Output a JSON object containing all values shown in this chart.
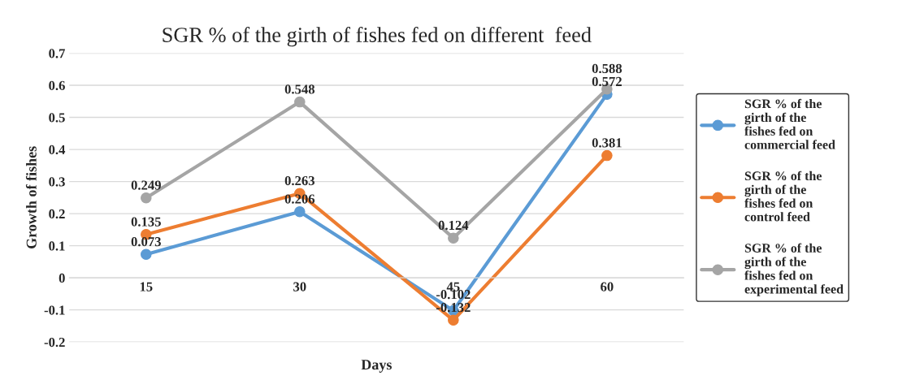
{
  "chart_data": {
    "type": "line",
    "title": "SGR % of the girth of fishes fed on different  feed",
    "xlabel": "Days",
    "ylabel": "Growth of fishes",
    "categories": [
      "15",
      "30",
      "45",
      "60"
    ],
    "series": [
      {
        "name": "SGR % of the girth of the fishes fed on commercial feed",
        "color": "#5b9bd5",
        "values": [
          0.073,
          0.206,
          -0.102,
          0.572
        ]
      },
      {
        "name": "SGR % of the girth of the fishes fed on control feed",
        "color": "#ed7d31",
        "values": [
          0.135,
          0.263,
          -0.132,
          0.381
        ]
      },
      {
        "name": "SGR % of the girth of the fishes fed on experimental feed",
        "color": "#a5a5a5",
        "values": [
          0.249,
          0.548,
          0.124,
          0.588
        ]
      }
    ],
    "ylim": [
      -0.2,
      0.7
    ],
    "yticks": [
      {
        "value": -0.2,
        "label": "-0.2"
      },
      {
        "value": -0.1,
        "label": "-0.1"
      },
      0,
      0.1,
      0.2,
      0.3,
      0.4,
      0.5,
      0.6,
      0.7
    ],
    "grid": "y",
    "legend": "right",
    "marker": "circle",
    "line_style": "solid",
    "data_labels": true
  }
}
